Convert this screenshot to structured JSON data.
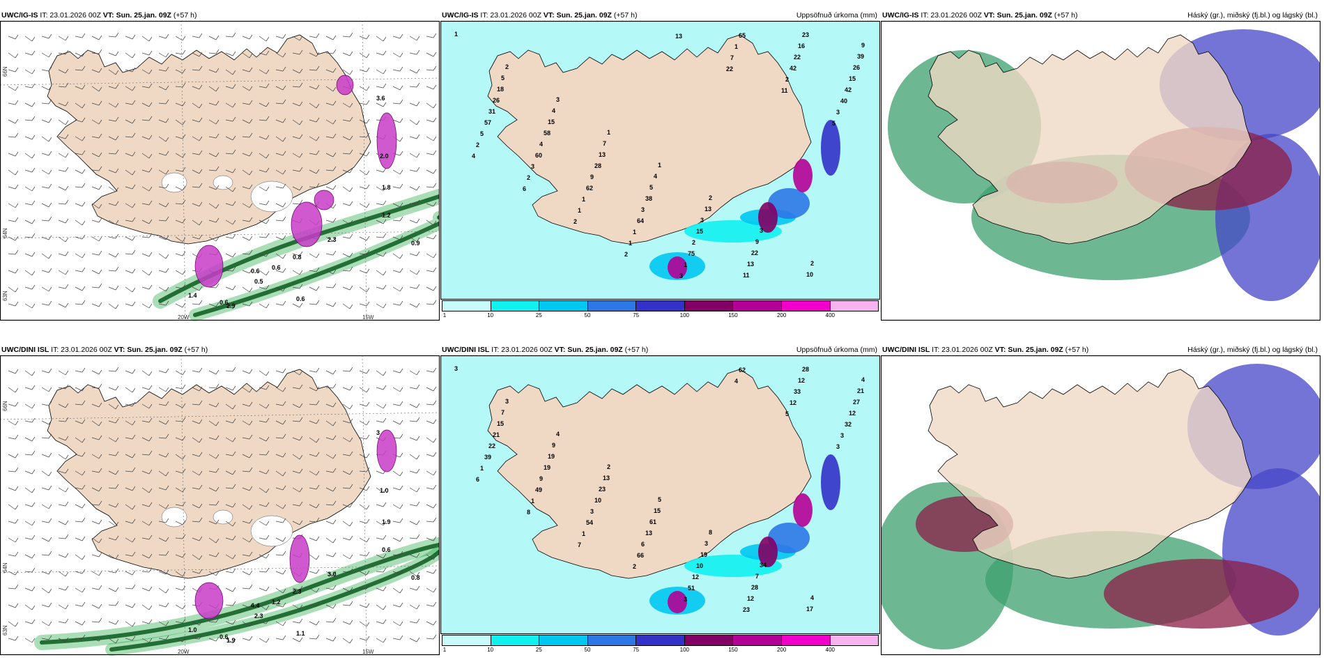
{
  "rows": [
    {
      "model": "UWC/IG-IS",
      "it_label": "IT: 23.01.2026 00Z",
      "vt_label": "VT: Sun. 25.jan. 09Z",
      "lead": "(+57 h)"
    },
    {
      "model": "UWC/DINI ISL",
      "it_label": "IT: 23.01.2026 00Z",
      "vt_label": "VT: Sun. 25.jan. 09Z",
      "lead": "(+57 h)"
    }
  ],
  "panel_titles": {
    "precip": "Uppsöfnuð úrkoma (mm)",
    "cloud": "Háský (gr.), miðský (fj.bl.) og lágský (bl.)"
  },
  "axis_labels": {
    "lat66": "66N",
    "lat64": "64N",
    "lat63": "63N",
    "lon20": "20W",
    "lon15": "15W"
  },
  "precip_legend": {
    "ticks": [
      "1",
      "10",
      "25",
      "50",
      "75",
      "100",
      "150",
      "200",
      "400"
    ],
    "colors": [
      "#c8fbfb",
      "#12f0f0",
      "#00c8f0",
      "#2e78e6",
      "#3232c8",
      "#820064",
      "#b40096",
      "#f000c8",
      "#f5b4f0"
    ]
  },
  "colors": {
    "land": "#efd8c4",
    "ocean_precip": "#b4f8f8",
    "wind_precip": "#0aa032",
    "wind_precip_dark": "#0a5a1e",
    "snow": "#c83cc8",
    "cloud_high": "#3ca06e",
    "cloud_mid": "#4646c8",
    "cloud_low": "#8c1e46"
  },
  "panel1_top": {
    "labels": [
      "3.6",
      "2.0",
      "1.8",
      "1.2",
      "0.9",
      "0.8",
      "0.6",
      "0.5",
      "0.6",
      "1.4",
      "0.6",
      "0.6",
      "2.3",
      "2.9"
    ]
  },
  "panel1_bottom": {
    "labels": [
      "3",
      "1.0",
      "1.9",
      "0.6",
      "0.8",
      "2.3",
      "4.4",
      "2.3",
      "1.2",
      "1.0",
      "0.6",
      "1.1",
      "3.0",
      "1.9"
    ]
  },
  "panel2_top": {
    "labels": [
      "1",
      "2",
      "3",
      "1",
      "1",
      "2",
      "3",
      "2",
      "9",
      "5",
      "4",
      "7",
      "4",
      "13",
      "9",
      "10",
      "39",
      "18",
      "15",
      "13",
      "5",
      "3",
      "22",
      "23",
      "26",
      "26",
      "58",
      "28",
      "38",
      "15",
      "13",
      "16",
      "15",
      "31",
      "4",
      "9",
      "3",
      "2",
      "11",
      "22",
      "42",
      "57",
      "60",
      "62",
      "64",
      "75",
      "65",
      "42",
      "40",
      "5",
      "3",
      "1",
      "1",
      "1",
      "1",
      "2",
      "3",
      "2",
      "2",
      "1",
      "1",
      "3",
      "7",
      "11",
      "5",
      "4",
      "6",
      "2",
      "2",
      "13",
      "22"
    ]
  },
  "panel2_bottom": {
    "labels": [
      "3",
      "3",
      "4",
      "2",
      "5",
      "8",
      "34",
      "4",
      "4",
      "7",
      "9",
      "13",
      "15",
      "3",
      "7",
      "17",
      "21",
      "15",
      "19",
      "23",
      "61",
      "19",
      "28",
      "28",
      "27",
      "21",
      "19",
      "10",
      "13",
      "10",
      "12",
      "12",
      "12",
      "22",
      "9",
      "3",
      "6",
      "12",
      "23",
      "33",
      "32",
      "39",
      "49",
      "54",
      "66",
      "51",
      "62",
      "12",
      "3",
      "1",
      "1",
      "1",
      "2",
      "3",
      "4",
      "5",
      "3",
      "6",
      "8",
      "7"
    ]
  }
}
